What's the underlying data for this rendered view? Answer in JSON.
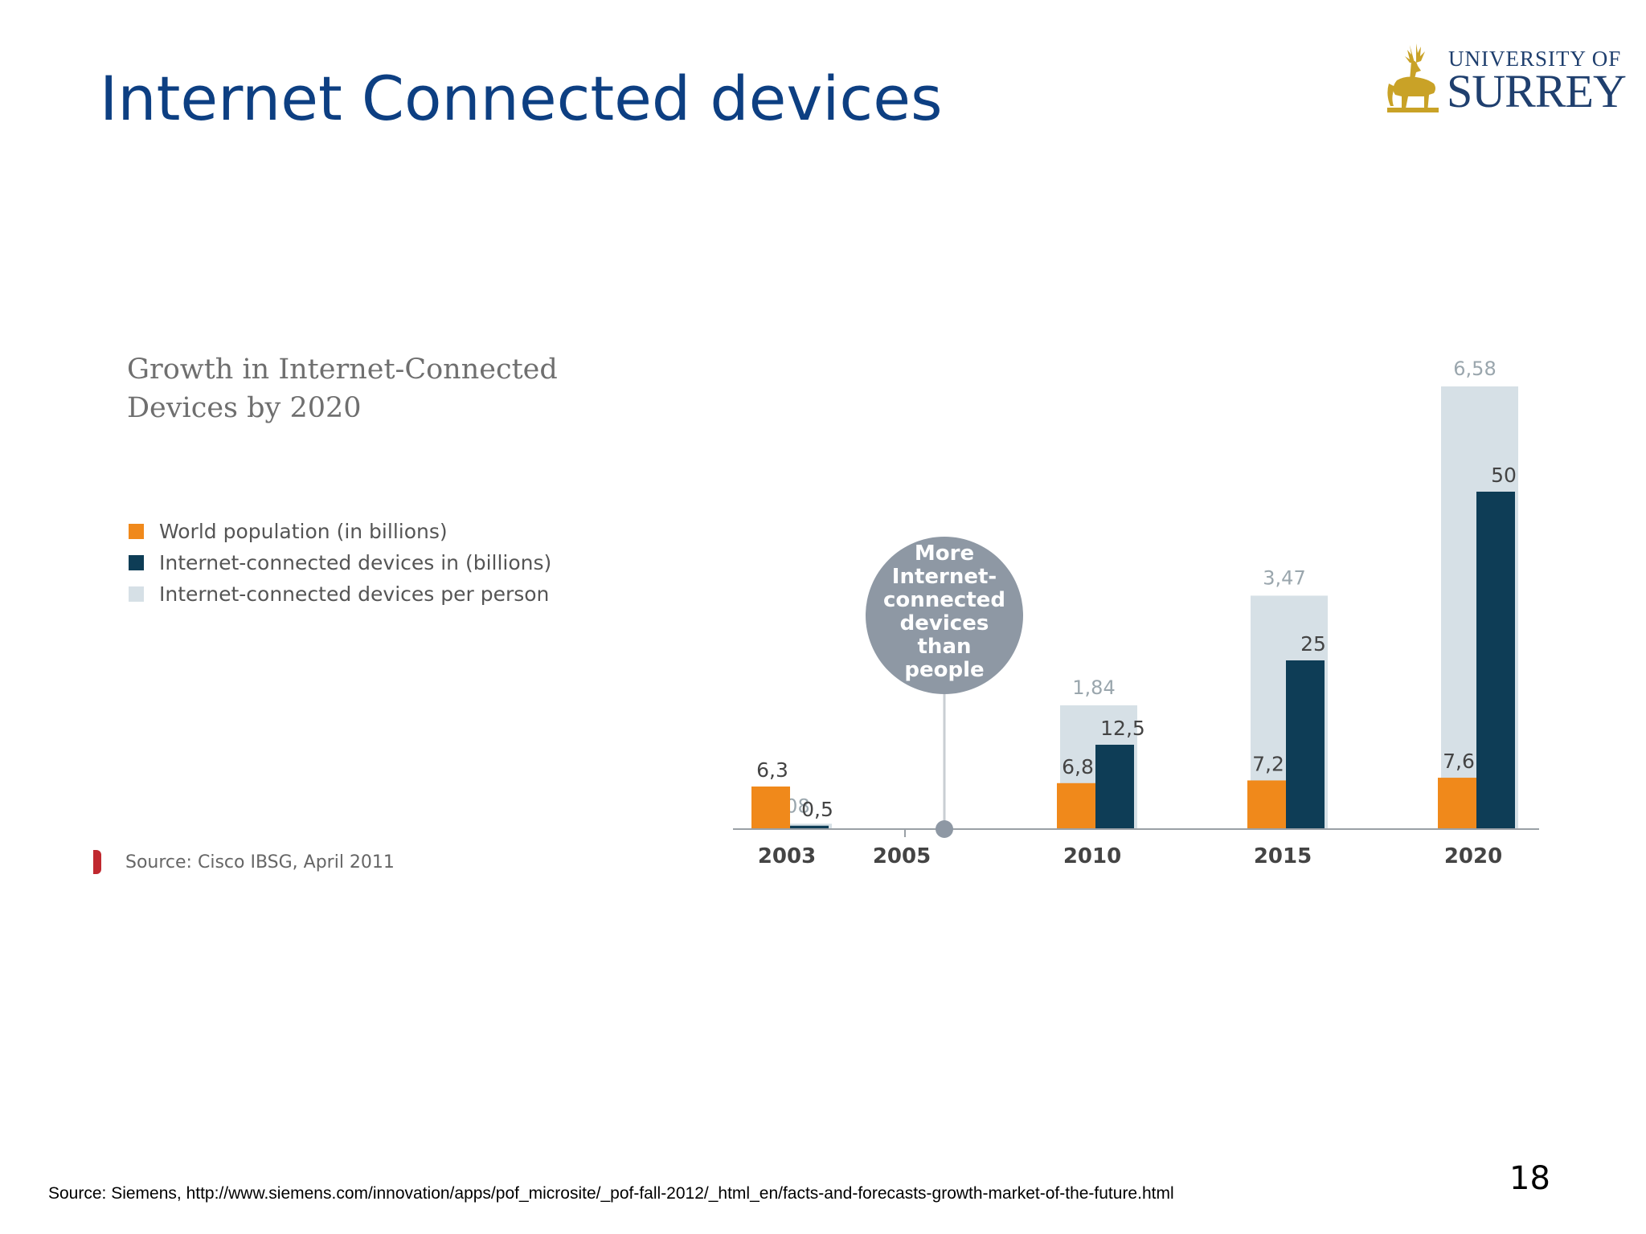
{
  "slide": {
    "title": "Internet Connected devices",
    "page_number": "18",
    "footer_source": "Source: Siemens, http://www.siemens.com/innovation/apps/pof_microsite/_pof-fall-2012/_html_en/facts-and-forecasts-growth-market-of-the-future.html"
  },
  "logo": {
    "line1": "UNIVERSITY OF",
    "line2": "SURREY",
    "gold": "#c9a227",
    "blue": "#1f3f6e"
  },
  "chart_data": {
    "type": "bar",
    "title": "Growth in Internet-Connected Devices by 2020",
    "source": "Source: Cisco IBSG, April 2011",
    "categories": [
      "2003",
      "2005",
      "2010",
      "2015",
      "2020"
    ],
    "series": [
      {
        "name": "World population (in billions)",
        "color": "#f0891b",
        "values": [
          6.3,
          null,
          6.8,
          7.2,
          7.6
        ],
        "labels": [
          "6,3",
          "",
          "6,8",
          "7,2",
          "7,6"
        ]
      },
      {
        "name": "Internet-connected devices in (billions)",
        "color": "#0e3d56",
        "values": [
          0.5,
          null,
          12.5,
          25,
          50
        ],
        "labels": [
          "0,5",
          "",
          "12,5",
          "25",
          "50"
        ]
      },
      {
        "name": "Internet-connected devices per person",
        "color": "#d6e0e6",
        "values": [
          0.08,
          null,
          1.84,
          3.47,
          6.58
        ],
        "labels": [
          "0,08",
          "",
          "1,84",
          "3,47",
          "6,58"
        ]
      }
    ],
    "annotation": {
      "text": [
        "More",
        "Internet-",
        "connected",
        "devices",
        "than",
        "people"
      ],
      "color": "#8e98a4"
    },
    "legend_position": "left",
    "grid": false
  }
}
